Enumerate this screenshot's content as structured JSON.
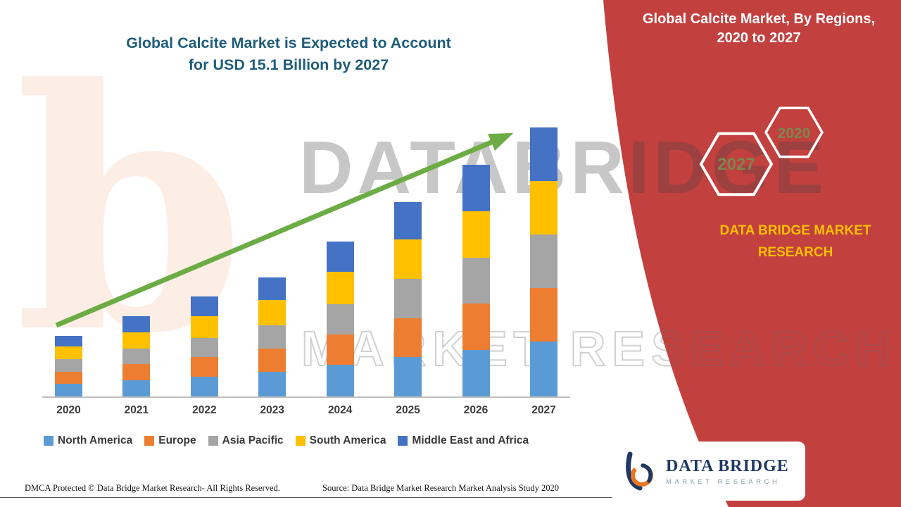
{
  "header": {
    "title_line1": "Global Calcite Market is Expected to Account",
    "title_line2": "for USD 15.1 Billion by 2027",
    "title_color": "#1F5C7A"
  },
  "side_panel": {
    "title_line1": "Global Calcite Market, By Regions,",
    "title_line2": "2020 to 2027",
    "background_color": "#C2403E",
    "hexagon_back_label": "2027",
    "hexagon_front_label": "2020",
    "hexagon_label_color": "#7C8650",
    "brand_line1": "DATA BRIDGE MARKET",
    "brand_line2": "RESEARCH",
    "brand_color": "#FFC000"
  },
  "chart_data": {
    "type": "bar",
    "stacked": true,
    "title": "Global Calcite Market is Expected to Account for USD 15.1 Billion by 2027",
    "unit": "USD Billion",
    "categories": [
      "2020",
      "2021",
      "2022",
      "2023",
      "2024",
      "2025",
      "2026",
      "2027"
    ],
    "series": [
      {
        "name": "North America",
        "color": "#5B9BD5",
        "values": [
          0.7,
          0.9,
          1.1,
          1.4,
          1.8,
          2.2,
          2.6,
          3.1
        ]
      },
      {
        "name": "Europe",
        "color": "#ED7D31",
        "values": [
          0.7,
          0.9,
          1.1,
          1.3,
          1.7,
          2.2,
          2.6,
          3.0
        ]
      },
      {
        "name": "Asia Pacific",
        "color": "#A5A5A5",
        "values": [
          0.7,
          0.9,
          1.1,
          1.3,
          1.7,
          2.2,
          2.6,
          3.0
        ]
      },
      {
        "name": "South America",
        "color": "#FFC000",
        "values": [
          0.7,
          0.9,
          1.2,
          1.4,
          1.8,
          2.2,
          2.6,
          3.0
        ]
      },
      {
        "name": "Middle East and Africa",
        "color": "#4472C4",
        "values": [
          0.6,
          0.9,
          1.1,
          1.3,
          1.7,
          2.1,
          2.6,
          3.0
        ]
      }
    ],
    "totals_usd_billion": [
      3.4,
      4.5,
      5.6,
      6.7,
      8.7,
      10.9,
      13.0,
      15.1
    ],
    "ylim": [
      0,
      15.1
    ],
    "grid": false,
    "legend_position": "bottom",
    "trend_arrow": {
      "present": true,
      "color": "#6CAC44",
      "direction": "up-right"
    }
  },
  "watermark": {
    "row1": "DATABRIDGE",
    "row2": "MARKET RESEARCH",
    "letter": "b"
  },
  "logo_card": {
    "brand": "DATA BRIDGE",
    "tagline": "MARKET RESEARCH"
  },
  "footer": {
    "dmca": "DMCA Protected © Data Bridge Market Research- All Rights Reserved.",
    "source": "Source: Data Bridge Market Research Market Analysis Study 2020"
  }
}
